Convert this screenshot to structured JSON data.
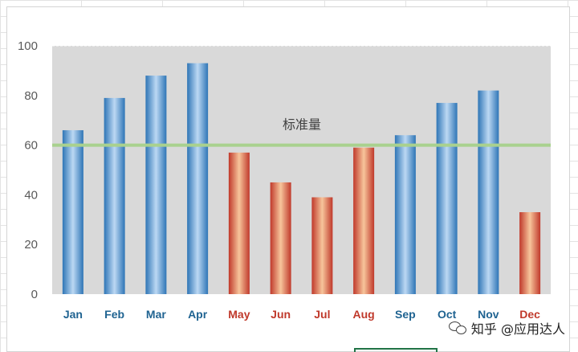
{
  "chart_data": {
    "type": "bar",
    "categories": [
      "Jan",
      "Feb",
      "Mar",
      "Apr",
      "May",
      "Jun",
      "Jul",
      "Aug",
      "Sep",
      "Oct",
      "Nov",
      "Dec"
    ],
    "values": [
      66,
      79,
      88,
      93,
      57,
      45,
      39,
      59,
      64,
      77,
      82,
      33
    ],
    "ylim": [
      0,
      100
    ],
    "yticks": [
      0,
      20,
      40,
      60,
      80,
      100
    ],
    "grid": false,
    "reference_line": {
      "label": "标准量",
      "value": 60,
      "color": "#a9d18e"
    },
    "colors": {
      "above_standard": "#2e75b6",
      "below_standard": "#c0504d",
      "plot_background": "#d9d9d9",
      "tick_label_above": "#1f6391",
      "tick_label_below": "#c0392b"
    }
  },
  "watermark": {
    "text": "知乎 @应用达人"
  }
}
